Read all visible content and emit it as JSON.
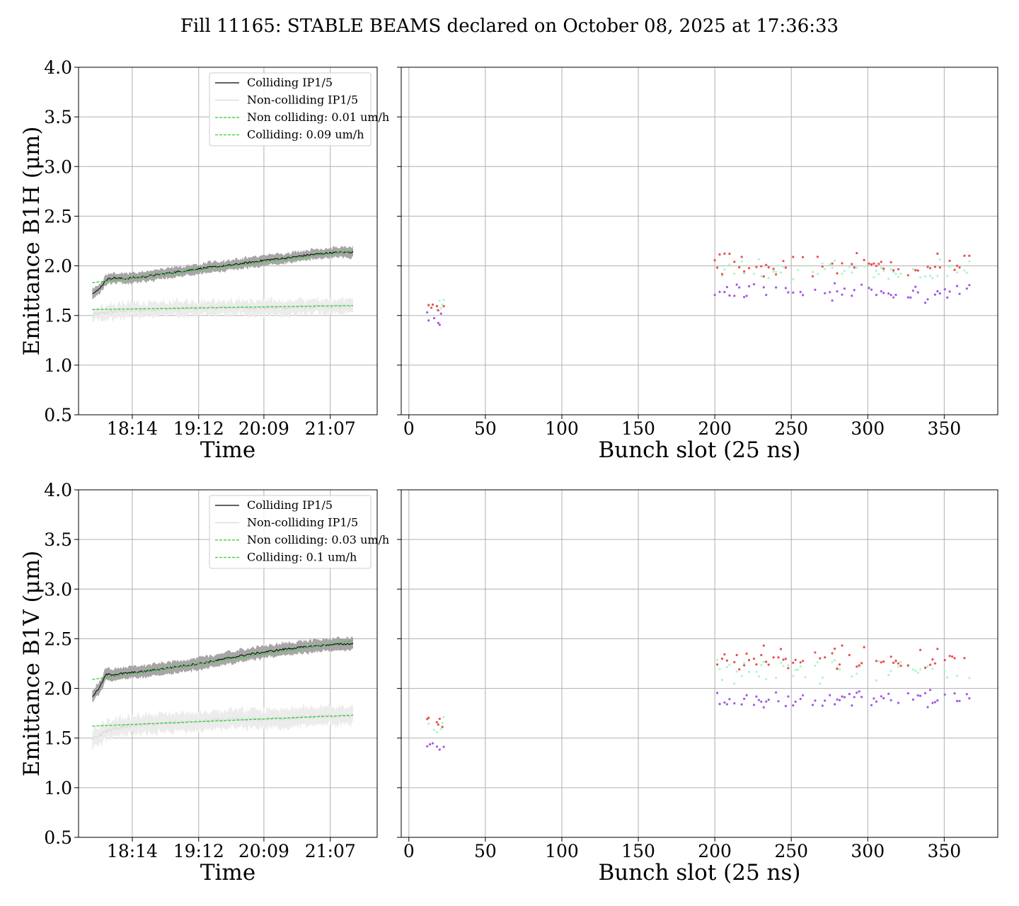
{
  "figure": {
    "suptitle": "Fill 11165: STABLE BEAMS declared on October 08, 2025 at 17:36:33"
  },
  "colors": {
    "colliding_line": "#000000",
    "colliding_band": "#a6a6a6",
    "noncolliding_line": "#d8d8d8",
    "noncolliding_band": "#ececec",
    "fit_line": "#2ed12e",
    "scatter_red": "#e8504a",
    "scatter_mint": "#aef5cf",
    "scatter_purple": "#a259e6",
    "grid": "#b0b0b0"
  },
  "chart_data": [
    {
      "id": "b1h_time",
      "type": "line",
      "xlabel": "Time",
      "ylabel": "Emittance B1H (μm)",
      "ylim": [
        0.5,
        4.0
      ],
      "xlim": [
        17.45,
        21.8
      ],
      "x_ticks": [
        18.233,
        19.2,
        20.15,
        21.117
      ],
      "x_tick_labels": [
        "18:14",
        "19:12",
        "20:09",
        "21:07"
      ],
      "y_ticks": [
        0.5,
        1.0,
        1.5,
        2.0,
        2.5,
        3.0,
        3.5,
        4.0
      ],
      "y_tick_labels": [
        "0.5",
        "1.0",
        "1.5",
        "2.0",
        "2.5",
        "3.0",
        "3.5",
        "4.0"
      ],
      "grid": true,
      "legend_placement": "upper right",
      "legend": [
        "Colliding IP1/5",
        "Non-colliding IP1/5",
        "Non colliding: 0.01 um/h",
        "Colliding: 0.09 um/h"
      ],
      "series": [
        {
          "name": "Colliding IP1/5",
          "x": [
            17.65,
            17.75,
            17.85,
            17.95,
            18.1,
            18.4,
            18.7,
            19.0,
            19.3,
            19.6,
            19.9,
            20.2,
            20.5,
            20.8,
            21.1,
            21.45
          ],
          "values": [
            1.73,
            1.76,
            1.86,
            1.88,
            1.87,
            1.89,
            1.92,
            1.95,
            1.98,
            2.0,
            2.03,
            2.06,
            2.08,
            2.11,
            2.13,
            2.14
          ],
          "band": 0.05
        },
        {
          "name": "Non-colliding IP1/5",
          "x": [
            17.65,
            17.85,
            18.1,
            18.5,
            19.0,
            19.5,
            20.0,
            20.5,
            21.0,
            21.45
          ],
          "values": [
            1.5,
            1.53,
            1.55,
            1.56,
            1.57,
            1.58,
            1.58,
            1.58,
            1.59,
            1.59
          ],
          "band": 0.07
        },
        {
          "name": "Non colliding: 0.01 um/h",
          "x": [
            17.65,
            21.45
          ],
          "values": [
            1.56,
            1.6
          ]
        },
        {
          "name": "Colliding: 0.09 um/h",
          "x": [
            17.65,
            21.45
          ],
          "values": [
            1.83,
            2.15
          ]
        }
      ]
    },
    {
      "id": "b1h_bunch",
      "type": "scatter",
      "xlabel": "Bunch slot (25 ns)",
      "ylim": [
        0.5,
        4.0
      ],
      "xlim": [
        -5,
        385
      ],
      "x_ticks": [
        0,
        50,
        100,
        150,
        200,
        250,
        300,
        350
      ],
      "x_tick_labels": [
        "0",
        "50",
        "100",
        "150",
        "200",
        "250",
        "300",
        "350"
      ],
      "grid": true,
      "groups": [
        {
          "color": "red",
          "x_range": [
            12,
            23
          ],
          "low": 1.5,
          "high": 1.64
        },
        {
          "color": "mint",
          "x_range": [
            12,
            23
          ],
          "low": 1.48,
          "high": 1.7
        },
        {
          "color": "purple",
          "x_range": [
            12,
            23
          ],
          "low": 1.32,
          "high": 1.58
        },
        {
          "color": "red",
          "x_range": [
            200,
            367
          ],
          "low": 1.86,
          "high": 2.16
        },
        {
          "color": "mint",
          "x_range": [
            200,
            367
          ],
          "low": 1.82,
          "high": 2.08
        },
        {
          "color": "purple",
          "x_range": [
            200,
            367
          ],
          "low": 1.62,
          "high": 1.84
        }
      ]
    },
    {
      "id": "b1v_time",
      "type": "line",
      "xlabel": "Time",
      "ylabel": "Emittance B1V (μm)",
      "ylim": [
        0.5,
        4.0
      ],
      "xlim": [
        17.45,
        21.8
      ],
      "x_ticks": [
        18.233,
        19.2,
        20.15,
        21.117
      ],
      "x_tick_labels": [
        "18:14",
        "19:12",
        "20:09",
        "21:07"
      ],
      "y_ticks": [
        0.5,
        1.0,
        1.5,
        2.0,
        2.5,
        3.0,
        3.5,
        4.0
      ],
      "y_tick_labels": [
        "0.5",
        "1.0",
        "1.5",
        "2.0",
        "2.5",
        "3.0",
        "3.5",
        "4.0"
      ],
      "grid": true,
      "legend_placement": "upper right",
      "legend": [
        "Colliding IP1/5",
        "Non-colliding IP1/5",
        "Non colliding: 0.03 um/h",
        "Colliding: 0.1 um/h"
      ],
      "series": [
        {
          "name": "Colliding IP1/5",
          "x": [
            17.65,
            17.75,
            17.85,
            17.95,
            18.1,
            18.4,
            18.7,
            19.0,
            19.3,
            19.6,
            19.9,
            20.2,
            20.5,
            20.8,
            21.1,
            21.45
          ],
          "values": [
            1.92,
            2.0,
            2.14,
            2.14,
            2.15,
            2.17,
            2.2,
            2.23,
            2.26,
            2.3,
            2.34,
            2.37,
            2.4,
            2.42,
            2.44,
            2.45
          ],
          "band": 0.06
        },
        {
          "name": "Non-colliding IP1/5",
          "x": [
            17.65,
            17.85,
            18.1,
            18.5,
            19.0,
            19.5,
            20.0,
            20.5,
            21.0,
            21.45
          ],
          "values": [
            1.48,
            1.57,
            1.62,
            1.64,
            1.66,
            1.68,
            1.69,
            1.7,
            1.72,
            1.72
          ],
          "band": 0.09
        },
        {
          "name": "Non colliding: 0.03 um/h",
          "x": [
            17.65,
            21.45
          ],
          "values": [
            1.62,
            1.73
          ]
        },
        {
          "name": "Colliding: 0.1 um/h",
          "x": [
            17.65,
            21.45
          ],
          "values": [
            2.09,
            2.48
          ]
        }
      ]
    },
    {
      "id": "b1v_bunch",
      "type": "scatter",
      "xlabel": "Bunch slot (25 ns)",
      "ylim": [
        0.5,
        4.0
      ],
      "xlim": [
        -5,
        385
      ],
      "x_ticks": [
        0,
        50,
        100,
        150,
        200,
        250,
        300,
        350
      ],
      "x_tick_labels": [
        "0",
        "50",
        "100",
        "150",
        "200",
        "250",
        "300",
        "350"
      ],
      "grid": true,
      "groups": [
        {
          "color": "red",
          "x_range": [
            12,
            23
          ],
          "low": 1.6,
          "high": 1.72
        },
        {
          "color": "mint",
          "x_range": [
            12,
            23
          ],
          "low": 1.55,
          "high": 1.75
        },
        {
          "color": "purple",
          "x_range": [
            12,
            23
          ],
          "low": 1.34,
          "high": 1.48
        },
        {
          "color": "red",
          "x_range": [
            200,
            367
          ],
          "low": 2.16,
          "high": 2.44
        },
        {
          "color": "mint",
          "x_range": [
            200,
            367
          ],
          "low": 2.04,
          "high": 2.3
        },
        {
          "color": "purple",
          "x_range": [
            200,
            367
          ],
          "low": 1.78,
          "high": 2.0
        }
      ]
    }
  ]
}
